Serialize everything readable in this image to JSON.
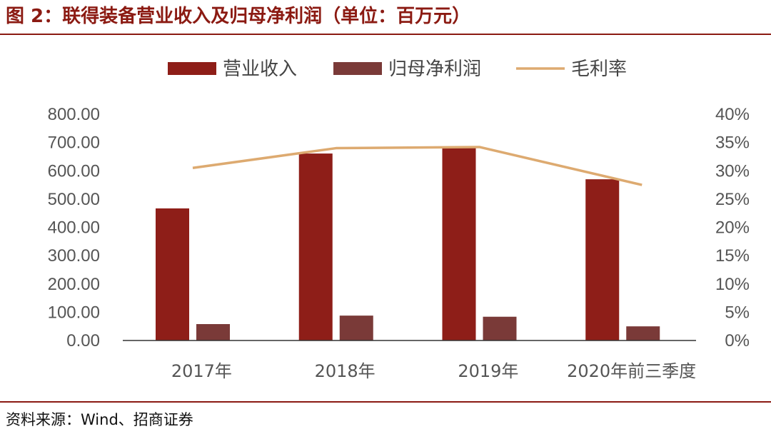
{
  "title": "图 2：联得装备营业收入及归母净利润（单位：百万元）",
  "source": "资料来源：Wind、招商证券",
  "colors": {
    "revenue": "#8E1E18",
    "net_profit": "#7A3A38",
    "margin": "#DDAA70",
    "title": "#8B1A12"
  },
  "chart_data": {
    "type": "bar",
    "categories": [
      "2017年",
      "2018年",
      "2019年",
      "2020年前三季度"
    ],
    "series": [
      {
        "name": "营业收入",
        "type": "bar",
        "axis": "left",
        "values": [
          467,
          661,
          686,
          570
        ]
      },
      {
        "name": "归母净利润",
        "type": "bar",
        "axis": "left",
        "values": [
          58,
          88,
          84,
          50
        ]
      },
      {
        "name": "毛利率",
        "type": "line",
        "axis": "right",
        "values": [
          30.5,
          34.0,
          34.2,
          27.5
        ]
      }
    ],
    "y_left": {
      "ticks": [
        "800.00",
        "700.00",
        "600.00",
        "500.00",
        "400.00",
        "300.00",
        "200.00",
        "100.00",
        "0.00"
      ],
      "ylim": [
        0,
        800
      ]
    },
    "y_right": {
      "ticks": [
        "40%",
        "35%",
        "30%",
        "25%",
        "20%",
        "15%",
        "10%",
        "5%",
        "0%"
      ],
      "ylim": [
        0,
        40
      ]
    },
    "legend_position": "top-center",
    "grid": false
  }
}
